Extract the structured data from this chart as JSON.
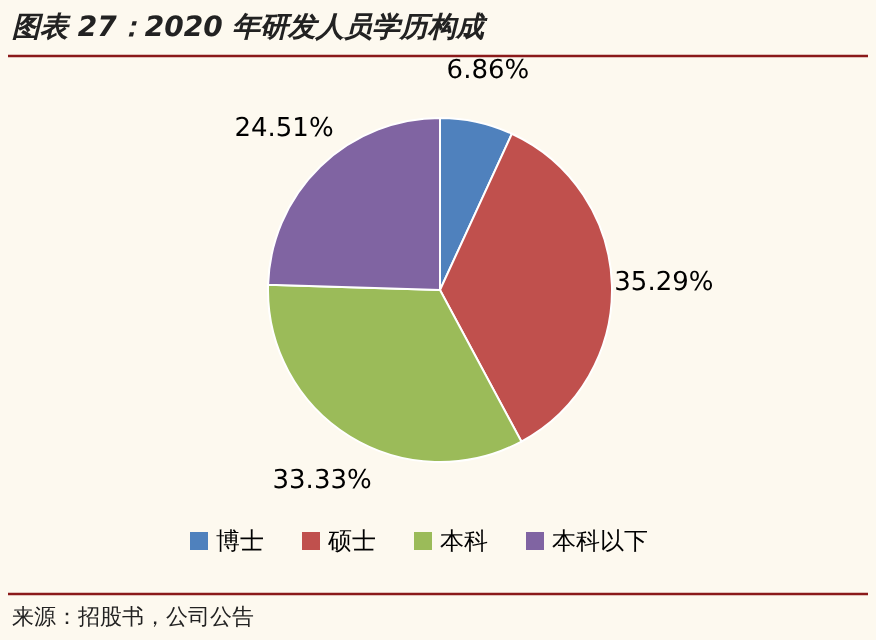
{
  "chart_data": {
    "type": "pie",
    "title": "图表 27：2020 年研发人员学历构成",
    "categories": [
      "博士",
      "硕士",
      "本科",
      "本科以下"
    ],
    "values": [
      6.86,
      35.29,
      33.33,
      24.51
    ],
    "value_labels": [
      "6.86%",
      "35.29%",
      "33.33%",
      "24.51%"
    ],
    "colors": [
      "#4f81bd",
      "#c0504d",
      "#9bbb59",
      "#8064a2"
    ],
    "legend": "bottom",
    "annotations": [
      "来源：招股书，公司公告"
    ]
  }
}
